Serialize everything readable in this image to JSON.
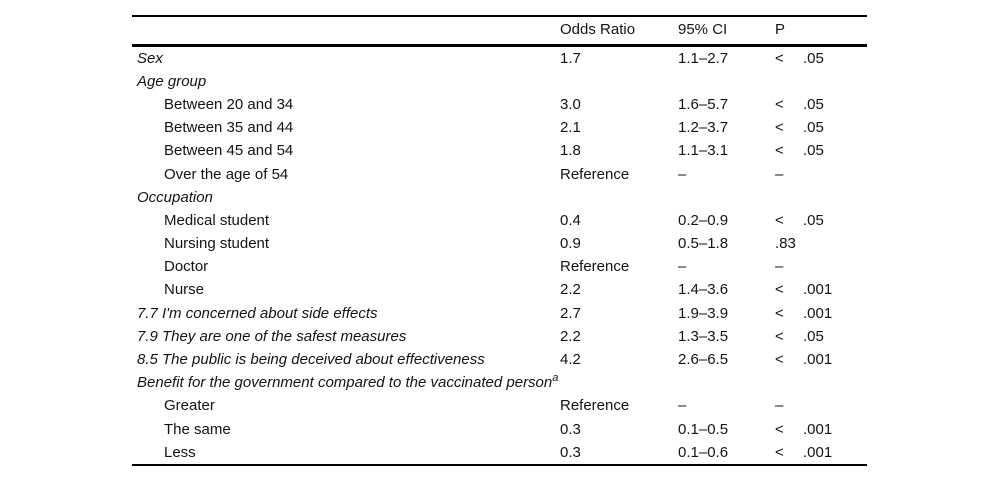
{
  "table": {
    "header": {
      "odds_ratio": "Odds Ratio",
      "ci": "95% CI",
      "p": "P"
    },
    "rows": [
      {
        "label": "Sex",
        "indent": 0,
        "italic": true,
        "or": "1.7",
        "ci": "1.1–2.7",
        "p_sign": "<",
        "p_value": ".05"
      },
      {
        "label": "Age group",
        "indent": 0,
        "italic": true,
        "or": "",
        "ci": "",
        "p_sign": "",
        "p_value": ""
      },
      {
        "label": "Between 20 and 34",
        "indent": 1,
        "italic": false,
        "or": "3.0",
        "ci": "1.6–5.7",
        "p_sign": "<",
        "p_value": ".05"
      },
      {
        "label": "Between 35 and 44",
        "indent": 1,
        "italic": false,
        "or": "2.1",
        "ci": "1.2–3.7",
        "p_sign": "<",
        "p_value": ".05"
      },
      {
        "label": "Between 45 and 54",
        "indent": 1,
        "italic": false,
        "or": "1.8",
        "ci": "1.1–3.1",
        "p_sign": "<",
        "p_value": ".05"
      },
      {
        "label": "Over the age of 54",
        "indent": 1,
        "italic": false,
        "or": "Reference",
        "ci": "–",
        "p_sign": "–",
        "p_value": ""
      },
      {
        "label": "Occupation",
        "indent": 0,
        "italic": true,
        "or": "",
        "ci": "",
        "p_sign": "",
        "p_value": ""
      },
      {
        "label": "Medical student",
        "indent": 1,
        "italic": false,
        "or": "0.4",
        "ci": "0.2–0.9",
        "p_sign": "<",
        "p_value": ".05"
      },
      {
        "label": "Nursing student",
        "indent": 1,
        "italic": false,
        "or": "0.9",
        "ci": "0.5–1.8",
        "p_sign": ".83",
        "p_value": ""
      },
      {
        "label": "Doctor",
        "indent": 1,
        "italic": false,
        "or": "Reference",
        "ci": "–",
        "p_sign": "–",
        "p_value": ""
      },
      {
        "label": "Nurse",
        "indent": 1,
        "italic": false,
        "or": "2.2",
        "ci": "1.4–3.6",
        "p_sign": "<",
        "p_value": ".001"
      },
      {
        "label": "7.7 I'm concerned about side effects",
        "indent": 0,
        "italic": true,
        "or": "2.7",
        "ci": "1.9–3.9",
        "p_sign": "<",
        "p_value": ".001"
      },
      {
        "label": "7.9 They are one of the safest measures",
        "indent": 0,
        "italic": true,
        "or": "2.2",
        "ci": "1.3–3.5",
        "p_sign": "<",
        "p_value": ".05"
      },
      {
        "label": "8.5 The public is being deceived about effectiveness",
        "indent": 0,
        "italic": true,
        "or": "4.2",
        "ci": "2.6–6.5",
        "p_sign": "<",
        "p_value": ".001"
      },
      {
        "label": "Benefit for the government compared to the vaccinated person",
        "sup": "a",
        "indent": 0,
        "italic": true,
        "or": "",
        "ci": "",
        "p_sign": "",
        "p_value": ""
      },
      {
        "label": "Greater",
        "indent": 1,
        "italic": false,
        "or": "Reference",
        "ci": "–",
        "p_sign": "–",
        "p_value": ""
      },
      {
        "label": "The same",
        "indent": 1,
        "italic": false,
        "or": "0.3",
        "ci": "0.1–0.5",
        "p_sign": "<",
        "p_value": ".001"
      },
      {
        "label": "Less",
        "indent": 1,
        "italic": false,
        "or": "0.3",
        "ci": "0.1–0.6",
        "p_sign": "<",
        "p_value": ".001"
      }
    ]
  }
}
